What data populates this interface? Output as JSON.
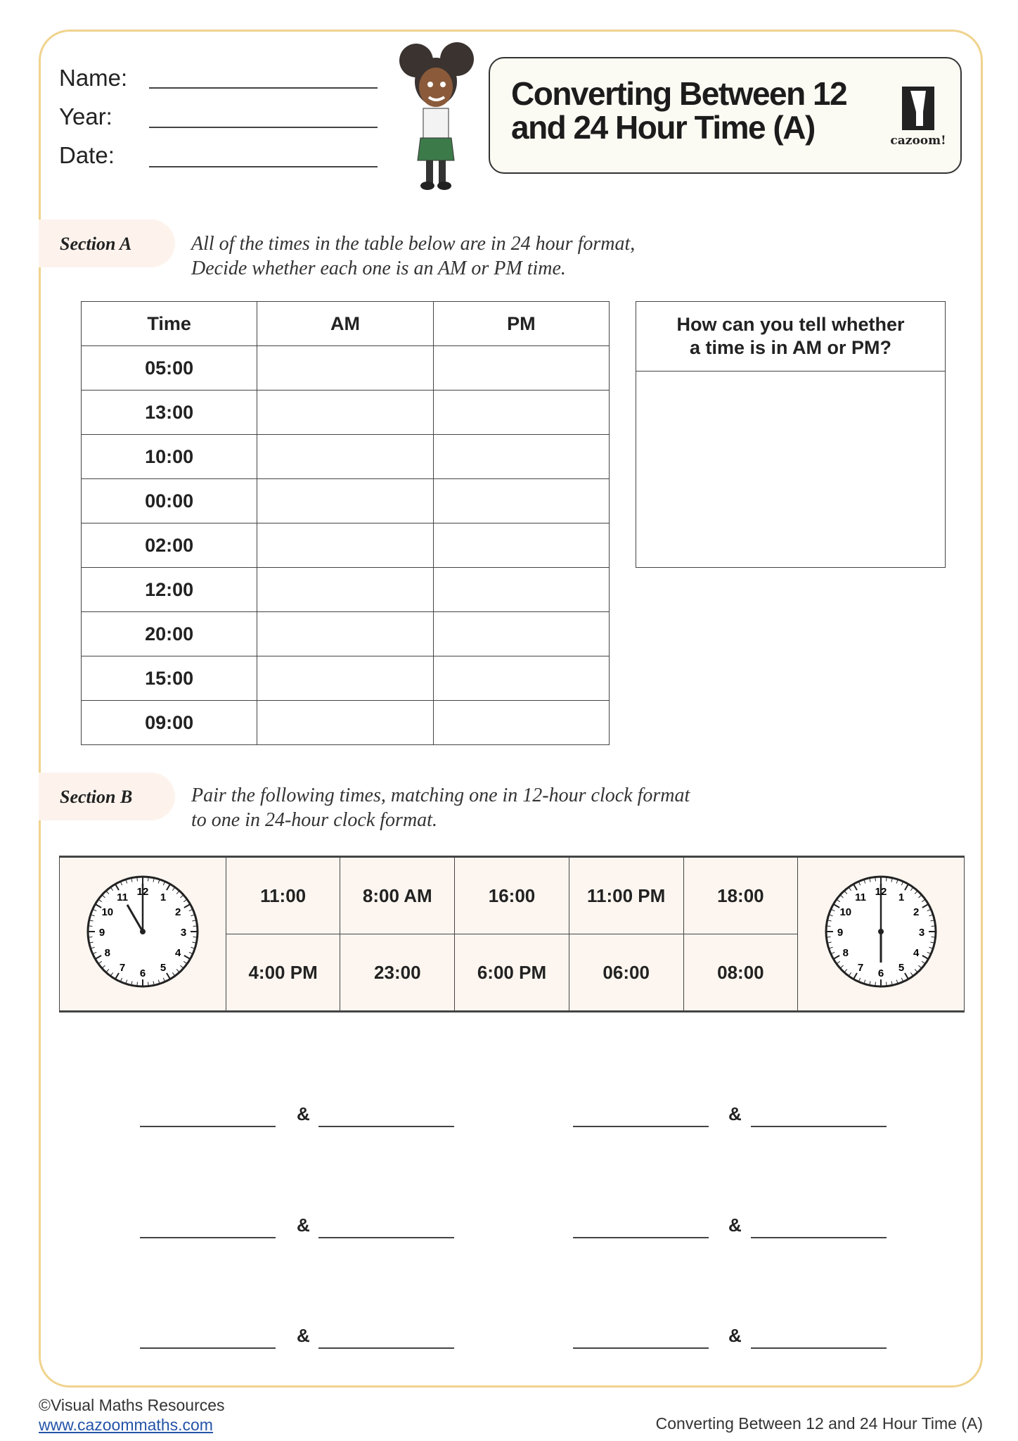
{
  "header": {
    "name_label": "Name:",
    "year_label": "Year:",
    "date_label": "Date:",
    "title_line1": "Converting Between 12",
    "title_line2": "and 24 Hour Time (A)",
    "logo_text": "cazoom!"
  },
  "section_a": {
    "label": "Section A",
    "instruction_line1": "All of the times in the table below are in 24 hour format,",
    "instruction_line2": "Decide whether each one is an AM or PM time.",
    "columns": [
      "Time",
      "AM",
      "PM"
    ],
    "times": [
      "05:00",
      "13:00",
      "10:00",
      "00:00",
      "02:00",
      "12:00",
      "20:00",
      "15:00",
      "09:00"
    ],
    "question_line1": "How can you tell whether",
    "question_line2": "a time is in AM or PM?"
  },
  "section_b": {
    "label": "Section B",
    "instruction_line1": "Pair the following times, matching one in 12-hour clock format",
    "instruction_line2": "to one in 24-hour clock format.",
    "top_row": [
      "11:00",
      "8:00 AM",
      "16:00",
      "11:00 PM",
      "18:00"
    ],
    "bottom_row": [
      "4:00 PM",
      "23:00",
      "6:00 PM",
      "06:00",
      "08:00"
    ],
    "left_clock_time": "11:00",
    "right_clock_time": "6:00",
    "ampersand": "&"
  },
  "footer": {
    "copyright": "©Visual Maths Resources",
    "link": "www.cazoommaths.com",
    "title": "Converting Between 12 and 24 Hour Time (A)"
  },
  "colors": {
    "border": "#f0d38e",
    "section_pill": "#fdf3ec",
    "matching_bg": "#fdf6f0",
    "link": "#2454a8"
  }
}
